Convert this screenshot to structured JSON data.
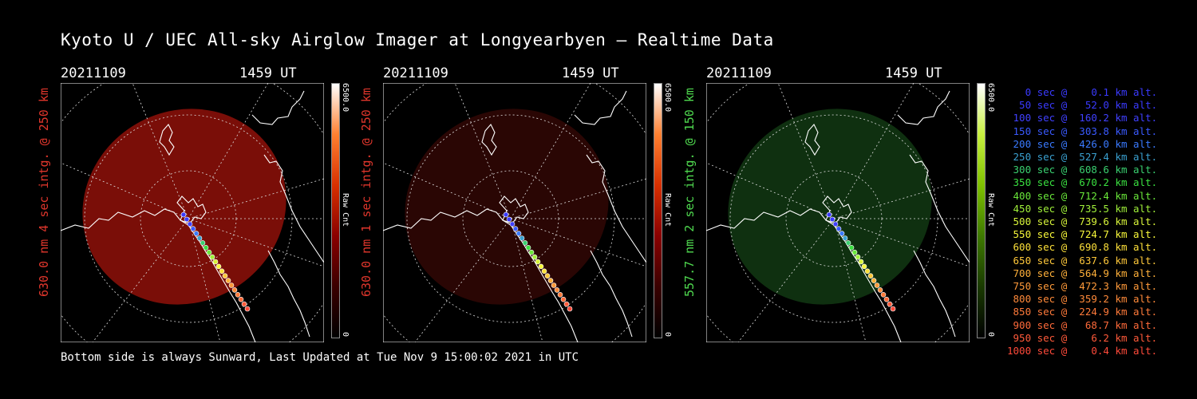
{
  "title": "Kyoto U / UEC All-sky Airglow Imager at Longyearbyen — Realtime Data",
  "footer": "Bottom side is always Sunward, Last Updated at Tue Nov  9 15:00:02 2021 in UTC",
  "panels": [
    {
      "date": "20211109",
      "time": "1459 UT",
      "label": "630.0 nm 4 sec intg. @ 250 km",
      "label_color": "#e0362c",
      "colorbar_max": "6500.0",
      "colorbar_name": "Raw Cnt",
      "colorbar_min": "0",
      "glow": "#7a0e08",
      "bar": "red"
    },
    {
      "date": "20211109",
      "time": "1459 UT",
      "label": "630.0 nm 1 sec intg. @ 250 km",
      "label_color": "#e0362c",
      "colorbar_max": "6500.0",
      "colorbar_name": "Raw Cnt",
      "colorbar_min": "0",
      "glow": "#2a0604",
      "bar": "red"
    },
    {
      "date": "20211109",
      "time": "1459 UT",
      "label": "557.7 nm 2 sec intg. @ 150 km",
      "label_color": "#4fd94f",
      "colorbar_max": "6500.0",
      "colorbar_name": "Raw Cnt",
      "colorbar_min": "0",
      "glow": "#0f3010",
      "bar": "green"
    }
  ],
  "legend": [
    {
      "text": "   0 sec @    0.1 km alt.",
      "color": "#3a3aff"
    },
    {
      "text": "  50 sec @   52.0 km alt.",
      "color": "#3a3aff"
    },
    {
      "text": " 100 sec @  160.2 km alt.",
      "color": "#4040ff"
    },
    {
      "text": " 150 sec @  303.8 km alt.",
      "color": "#3a5aff"
    },
    {
      "text": " 200 sec @  426.0 km alt.",
      "color": "#3a7aff"
    },
    {
      "text": " 250 sec @  527.4 km alt.",
      "color": "#3aa0d0"
    },
    {
      "text": " 300 sec @  608.6 km alt.",
      "color": "#3ad070"
    },
    {
      "text": " 350 sec @  670.2 km alt.",
      "color": "#3ae040"
    },
    {
      "text": " 400 sec @  712.4 km alt.",
      "color": "#6ae83a"
    },
    {
      "text": " 450 sec @  735.5 km alt.",
      "color": "#a0f03a"
    },
    {
      "text": " 500 sec @  739.6 km alt.",
      "color": "#d8f43a"
    },
    {
      "text": " 550 sec @  724.7 km alt.",
      "color": "#f8f83a"
    },
    {
      "text": " 600 sec @  690.8 km alt.",
      "color": "#fde03a"
    },
    {
      "text": " 650 sec @  637.6 km alt.",
      "color": "#ffc83a"
    },
    {
      "text": " 700 sec @  564.9 km alt.",
      "color": "#ffb03a"
    },
    {
      "text": " 750 sec @  472.3 km alt.",
      "color": "#ff9a3a"
    },
    {
      "text": " 800 sec @  359.2 km alt.",
      "color": "#ff8a3a"
    },
    {
      "text": " 850 sec @  224.9 km alt.",
      "color": "#ff7a3a"
    },
    {
      "text": " 900 sec @   68.7 km alt.",
      "color": "#ff6a3a"
    },
    {
      "text": " 950 sec @    6.2 km alt.",
      "color": "#ff5a3a"
    },
    {
      "text": "1000 sec @    0.4 km alt.",
      "color": "#ff4a3a"
    }
  ]
}
